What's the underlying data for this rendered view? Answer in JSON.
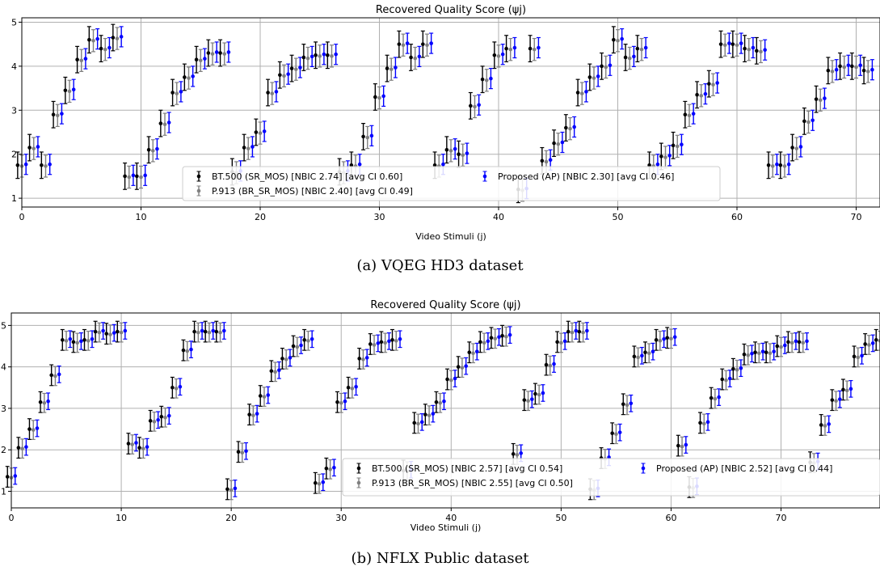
{
  "caption_a": "(a) VQEG HD3 dataset",
  "caption_b": "(b) NFLX Public dataset",
  "colors": {
    "bt500": "#000000",
    "p913": "#808080",
    "proposed": "#0000ff",
    "grid": "#b0b0b0"
  },
  "chart_data": [
    {
      "type": "scatter",
      "title": "Recovered Quality Score (ψj)",
      "xlabel": "Video Stimuli (j)",
      "ylabel": "",
      "xlim": [
        0,
        72
      ],
      "ylim": [
        0.8,
        5.1
      ],
      "xticks": [
        0,
        10,
        20,
        30,
        40,
        50,
        60,
        70
      ],
      "yticks": [
        1,
        2,
        3,
        4,
        5
      ],
      "grid": true,
      "legend_position": "lower center",
      "legend": [
        {
          "key": "bt500",
          "label": "BT.500 (SR_MOS) [NBIC 2.74] [avg CI 0.60]"
        },
        {
          "key": "p913",
          "label": "P.913 (BR_SR_MOS) [NBIC 2.40] [avg CI 0.49]"
        },
        {
          "key": "proposed",
          "label": "Proposed (AP) [NBIC 2.30] [avg CI 0.46]"
        }
      ],
      "ci": {
        "bt500": 0.3,
        "p913": 0.25,
        "proposed": 0.23
      },
      "values": [
        1.75,
        2.15,
        1.75,
        2.9,
        3.45,
        4.15,
        4.6,
        4.4,
        4.65,
        1.5,
        1.5,
        2.1,
        2.7,
        3.4,
        3.75,
        4.15,
        4.3,
        4.3,
        1.6,
        2.15,
        2.5,
        3.4,
        3.8,
        3.95,
        4.2,
        4.25,
        4.25,
        1.6,
        1.75,
        2.4,
        3.3,
        3.95,
        4.5,
        4.2,
        4.5,
        1.75,
        2.1,
        2.0,
        3.1,
        3.7,
        4.25,
        4.4,
        1.2,
        4.4,
        1.85,
        2.25,
        2.6,
        3.4,
        3.75,
        4.0,
        4.6,
        4.2,
        4.4,
        1.75,
        1.95,
        2.2,
        2.9,
        3.35,
        3.6,
        4.5,
        4.5,
        4.4,
        4.35,
        1.75,
        1.75,
        2.15,
        2.75,
        3.25,
        3.9,
        4.0,
        4.0,
        3.9
      ]
    },
    {
      "type": "scatter",
      "title": "Recovered Quality Score (ψj)",
      "xlabel": "Video Stimuli (j)",
      "ylabel": "",
      "xlim": [
        0,
        79
      ],
      "ylim": [
        0.6,
        5.3
      ],
      "xticks": [
        0,
        10,
        20,
        30,
        40,
        50,
        60,
        70
      ],
      "yticks": [
        1,
        2,
        3,
        4,
        5
      ],
      "grid": true,
      "legend_position": "lower right",
      "legend": [
        {
          "key": "bt500",
          "label": "BT.500 (SR_MOS) [NBIC 2.57] [avg CI 0.54]"
        },
        {
          "key": "p913",
          "label": "P.913 (BR_SR_MOS) [NBIC 2.55] [avg CI 0.50]"
        },
        {
          "key": "proposed",
          "label": "Proposed (AP) [NBIC 2.52] [avg CI 0.44]"
        }
      ],
      "ci": {
        "bt500": 0.25,
        "p913": 0.23,
        "proposed": 0.2
      },
      "values": [
        1.35,
        2.05,
        2.5,
        3.15,
        3.8,
        4.65,
        4.6,
        4.65,
        4.85,
        4.8,
        4.85,
        2.15,
        2.05,
        2.7,
        2.8,
        3.5,
        4.4,
        4.85,
        4.85,
        4.85,
        1.05,
        1.95,
        2.85,
        3.3,
        3.9,
        4.2,
        4.5,
        4.65,
        1.2,
        1.55,
        3.15,
        3.5,
        4.2,
        4.55,
        4.6,
        4.65,
        1.5,
        2.65,
        2.85,
        3.15,
        3.7,
        4.0,
        4.35,
        4.6,
        4.7,
        4.75,
        1.9,
        3.2,
        3.35,
        4.05,
        4.6,
        4.85,
        4.85,
        1.05,
        1.8,
        2.4,
        3.1,
        4.25,
        4.35,
        4.65,
        4.7,
        2.1,
        1.1,
        2.65,
        3.25,
        3.7,
        3.95,
        4.3,
        4.35,
        4.35,
        4.5,
        4.6,
        4.6,
        1.7,
        2.6,
        3.2,
        3.45,
        4.25,
        4.55,
        4.65
      ]
    }
  ]
}
